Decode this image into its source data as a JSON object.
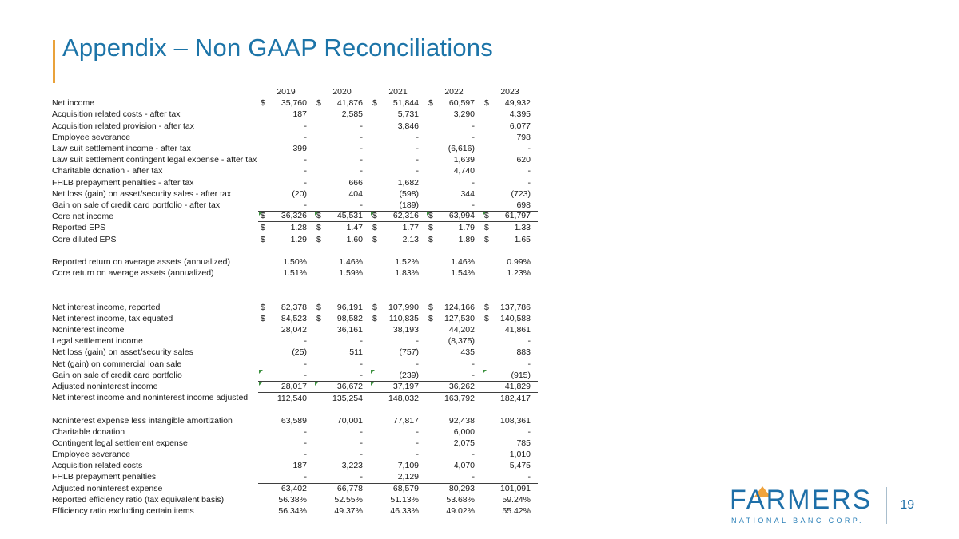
{
  "slide": {
    "title": "Appendix – Non GAAP Reconciliations",
    "page_number": "19"
  },
  "logo": {
    "wordmark": "FARMERS",
    "subtitle": "NATIONAL BANC CORP."
  },
  "colors": {
    "title_blue": "#1C74A8",
    "accent_orange": "#E9A23B",
    "logo_blue": "#1E6FA8",
    "flag_green": "#3D9140"
  },
  "table": {
    "currency_symbol": "$",
    "years": [
      "2019",
      "2020",
      "2021",
      "2022",
      "2023"
    ],
    "rows": [
      {
        "label": "Net income",
        "dollar": true,
        "values": [
          "35,760",
          "41,876",
          "51,844",
          "60,597",
          "49,932"
        ]
      },
      {
        "label": "Acquisition related costs - after tax",
        "values": [
          "187",
          "2,585",
          "5,731",
          "3,290",
          "4,395"
        ]
      },
      {
        "label": "Acquisition related provision - after tax",
        "values": [
          "-",
          "-",
          "3,846",
          "-",
          "6,077"
        ]
      },
      {
        "label": "Employee severance",
        "values": [
          "-",
          "-",
          "-",
          "-",
          "798"
        ]
      },
      {
        "label": "Law suit settlement income - after tax",
        "values": [
          "399",
          "-",
          "-",
          "(6,616)",
          "-"
        ]
      },
      {
        "label": "Law suit settlement contingent legal expense - after tax",
        "values": [
          "-",
          "-",
          "-",
          "1,639",
          "620"
        ]
      },
      {
        "label": "Charitable donation - after tax",
        "values": [
          "-",
          "-",
          "-",
          "4,740",
          "-"
        ]
      },
      {
        "label": "FHLB prepayment penalties - after tax",
        "values": [
          "-",
          "666",
          "1,682",
          "-",
          "-"
        ]
      },
      {
        "label": "Net loss (gain) on asset/security sales - after tax",
        "values": [
          "(20)",
          "404",
          "(598)",
          "344",
          "(723)"
        ]
      },
      {
        "label": "Gain on sale of credit card portfolio - after tax",
        "values": [
          "-",
          "-",
          "(189)",
          "-",
          "698"
        ]
      },
      {
        "label": "Core net income",
        "dollar": true,
        "style": "grand",
        "flags": [
          0,
          1,
          2,
          3,
          4
        ],
        "values": [
          "36,326",
          "45,531",
          "62,316",
          "63,994",
          "61,797"
        ]
      },
      {
        "label": "Reported EPS",
        "dollar": true,
        "values": [
          "1.28",
          "1.47",
          "1.77",
          "1.79",
          "1.33"
        ]
      },
      {
        "label": "Core diluted EPS",
        "dollar": true,
        "values": [
          "1.29",
          "1.60",
          "2.13",
          "1.89",
          "1.65"
        ]
      },
      {
        "spacer": true
      },
      {
        "label": "Reported return on average assets (annualized)",
        "values": [
          "1.50%",
          "1.46%",
          "1.52%",
          "1.46%",
          "0.99%"
        ]
      },
      {
        "label": "Core return on average assets (annualized)",
        "values": [
          "1.51%",
          "1.59%",
          "1.83%",
          "1.54%",
          "1.23%"
        ]
      },
      {
        "spacer": true
      },
      {
        "spacer": true
      },
      {
        "label": "Net interest income, reported",
        "dollar": true,
        "values": [
          "82,378",
          "96,191",
          "107,990",
          "124,166",
          "137,786"
        ]
      },
      {
        "label": "Net interest income, tax equated",
        "dollar": true,
        "values": [
          "84,523",
          "98,582",
          "110,835",
          "127,530",
          "140,588"
        ]
      },
      {
        "label": "Noninterest income",
        "values": [
          "28,042",
          "36,161",
          "38,193",
          "44,202",
          "41,861"
        ]
      },
      {
        "label": "Legal settlement income",
        "values": [
          "-",
          "-",
          "-",
          "(8,375)",
          "-"
        ]
      },
      {
        "label": "Net loss (gain) on asset/security sales",
        "values": [
          "(25)",
          "511",
          "(757)",
          "435",
          "883"
        ]
      },
      {
        "label": "Net (gain) on commercial loan sale",
        "values": [
          "-",
          "-",
          "-",
          "-",
          "-"
        ]
      },
      {
        "label": "Gain on sale of credit card portfolio",
        "flags": [
          0,
          2,
          4
        ],
        "values": [
          "-",
          "-",
          "(239)",
          "-",
          "(915)"
        ]
      },
      {
        "label": "Adjusted noninterest income",
        "style": "subtotal",
        "flags": [
          0,
          1,
          2
        ],
        "values": [
          "28,017",
          "36,672",
          "37,197",
          "36,262",
          "41,829"
        ]
      },
      {
        "label": "Net interest income and noninterest income adjusted",
        "style": "subtotal",
        "values": [
          "112,540",
          "135,254",
          "148,032",
          "163,792",
          "182,417"
        ]
      },
      {
        "spacer": true
      },
      {
        "label": "Noninterest expense less intangible amortization",
        "values": [
          "63,589",
          "70,001",
          "77,817",
          "92,438",
          "108,361"
        ]
      },
      {
        "label": "Charitable donation",
        "values": [
          "-",
          "-",
          "-",
          "6,000",
          "-"
        ]
      },
      {
        "label": "Contingent legal settlement expense",
        "values": [
          "-",
          "-",
          "-",
          "2,075",
          "785"
        ]
      },
      {
        "label": "Employee severance",
        "values": [
          "-",
          "-",
          "-",
          "-",
          "1,010"
        ]
      },
      {
        "label": "Acquisition related costs",
        "values": [
          "187",
          "3,223",
          "7,109",
          "4,070",
          "5,475"
        ]
      },
      {
        "label": "FHLB prepayment penalties",
        "values": [
          "-",
          "-",
          "2,129",
          "-",
          "-"
        ]
      },
      {
        "label": "Adjusted noninterest expense",
        "style": "subtotal",
        "values": [
          "63,402",
          "66,778",
          "68,579",
          "80,293",
          "101,091"
        ]
      },
      {
        "label": "Reported efficiency ratio (tax equivalent basis)",
        "values": [
          "56.38%",
          "52.55%",
          "51.13%",
          "53.68%",
          "59.24%"
        ]
      },
      {
        "label": "Efficiency ratio excluding certain items",
        "values": [
          "56.34%",
          "49.37%",
          "46.33%",
          "49.02%",
          "55.42%"
        ]
      }
    ]
  }
}
